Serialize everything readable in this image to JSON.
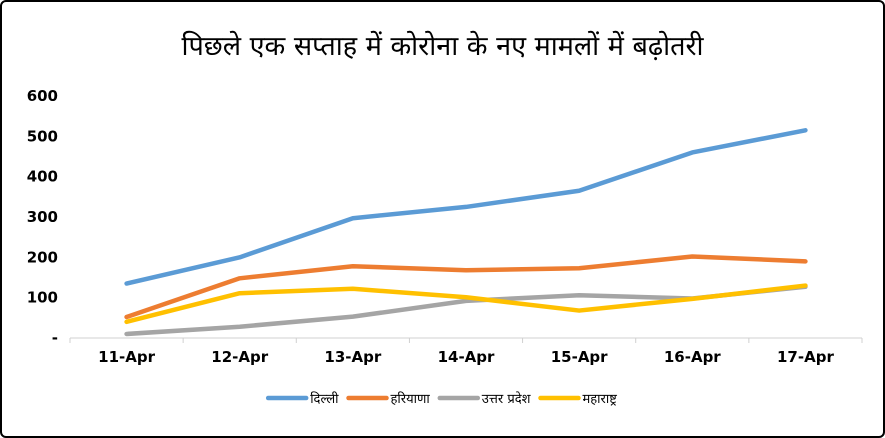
{
  "chart_data": {
    "type": "line",
    "title": "पिछले एक सप्ताह में कोरोना के नए मामलों में बढ़ोतरी",
    "xlabel": "",
    "ylabel": "",
    "categories": [
      "11-Apr",
      "12-Apr",
      "13-Apr",
      "14-Apr",
      "15-Apr",
      "16-Apr",
      "17-Apr"
    ],
    "yticks": [
      {
        "value": 0,
        "label": "-"
      },
      {
        "value": 100,
        "label": "100"
      },
      {
        "value": 200,
        "label": "200"
      },
      {
        "value": 300,
        "label": "300"
      },
      {
        "value": 400,
        "label": "400"
      },
      {
        "value": 500,
        "label": "500"
      },
      {
        "value": 600,
        "label": "600"
      }
    ],
    "ylim": [
      0,
      600
    ],
    "grid": false,
    "legend_position": "bottom",
    "series": [
      {
        "name": "दिल्ली",
        "color": "#5B9BD5",
        "values": [
          135,
          200,
          297,
          325,
          365,
          460,
          515
        ]
      },
      {
        "name": "हरियाणा",
        "color": "#ED7D31",
        "values": [
          52,
          148,
          178,
          168,
          173,
          202,
          190
        ]
      },
      {
        "name": "उत्तर प्रदेश",
        "color": "#A5A5A5",
        "values": [
          10,
          28,
          53,
          92,
          106,
          98,
          127
        ]
      },
      {
        "name": "महाराष्ट्र",
        "color": "#FFC000",
        "values": [
          40,
          111,
          122,
          101,
          68,
          97,
          130
        ]
      }
    ]
  }
}
